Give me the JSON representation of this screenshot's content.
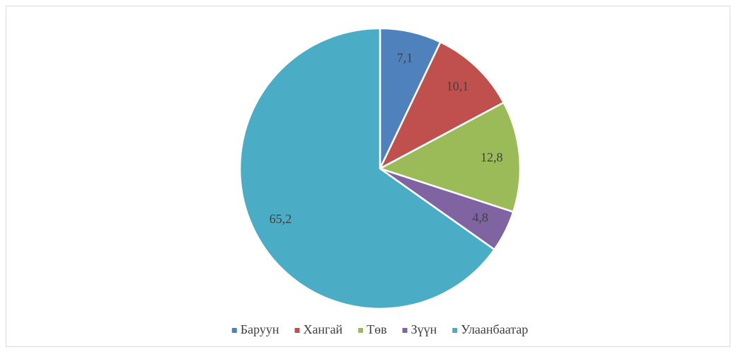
{
  "chart_data": {
    "type": "pie",
    "categories": [
      "Баруун",
      "Хангай",
      "Төв",
      "Зүүн",
      "Улаанбаатар"
    ],
    "values": [
      7.1,
      10.1,
      12.8,
      4.8,
      65.2
    ],
    "value_labels": [
      "7,1",
      "10,1",
      "12,8",
      "4,8",
      "65,2"
    ],
    "colors": [
      "#4f81bd",
      "#c0504d",
      "#9bbb59",
      "#8064a2",
      "#4bacc6"
    ],
    "legend": "bottom"
  }
}
